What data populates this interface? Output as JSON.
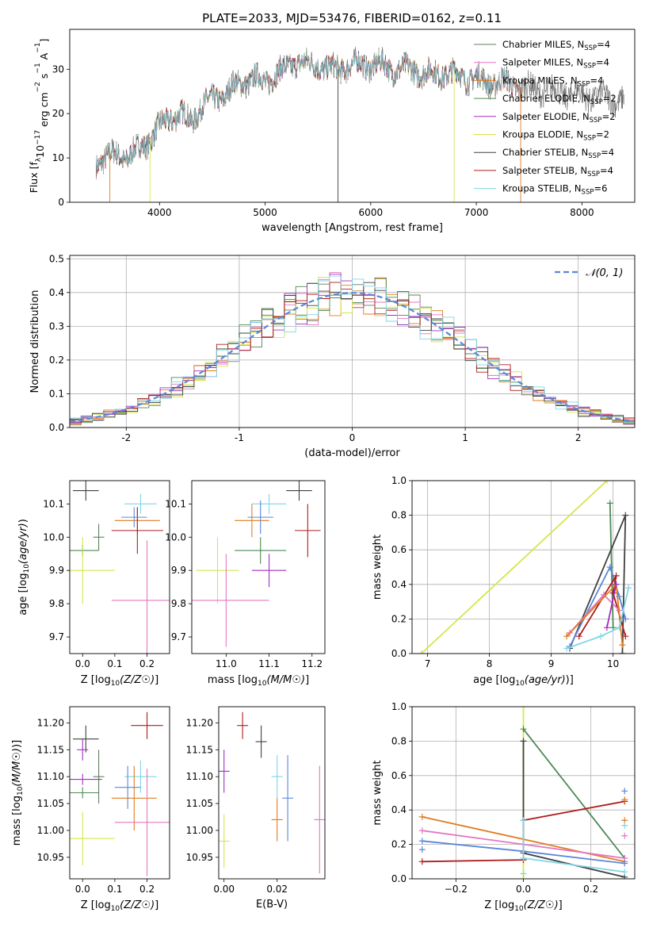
{
  "figure": {
    "title": "PLATE=2033, MJD=53476, FIBERID=0162, z=0.11"
  },
  "colors": {
    "Chabrier MILES": "#5f7f5f",
    "Salpeter MILES": "#e377c2",
    "Kroupa MILES": "#e07b20",
    "Chabrier ELODIE": "#4d8a55",
    "Salpeter ELODIE": "#a02fc0",
    "Kroupa ELODIE": "#d7e54d",
    "Chabrier STELIB": "#404040",
    "Salpeter STELIB": "#b01a1a",
    "Kroupa STELIB": "#7fd6e6",
    "blue": "#5b87d9",
    "normal_curve": "#5b87d9",
    "grid": "#b0b0b0"
  },
  "chart_data": [
    {
      "id": "spectrum",
      "type": "line",
      "title": "PLATE=2033, MJD=53476, FIBERID=0162, z=0.11",
      "xlabel": "wavelength [Angstrom, rest frame]",
      "ylabel": "Flux [f_λ 10^-17 erg cm^-2 s^-1 A^-1]",
      "xlim": [
        3150,
        8500
      ],
      "ylim": [
        0,
        39
      ],
      "xticks": [
        4000,
        5000,
        6000,
        7000,
        8000
      ],
      "yticks": [
        0,
        10,
        20,
        30
      ],
      "grid": false,
      "legend_position": "upper-right",
      "legend": [
        {
          "label": "Chabrier MILES, N_SSP=4",
          "text": "Chabrier MILES, N",
          "sub": "SSP",
          "tail": "=4",
          "model": "Chabrier MILES"
        },
        {
          "label": "Salpeter MILES, N_SSP=4",
          "text": "Salpeter MILES, N",
          "sub": "SSP",
          "tail": "=4",
          "model": "Salpeter MILES"
        },
        {
          "label": "Kroupa MILES, N_SSP=4",
          "text": "Kroupa MILES, N",
          "sub": "SSP",
          "tail": "=4",
          "model": "Kroupa MILES"
        },
        {
          "label": "Chabrier ELODIE, N_SSP=2",
          "text": "Chabrier ELODIE, N",
          "sub": "SSP",
          "tail": "=2",
          "model": "Chabrier ELODIE"
        },
        {
          "label": "Salpeter ELODIE, N_SSP=2",
          "text": "Salpeter ELODIE, N",
          "sub": "SSP",
          "tail": "=2",
          "model": "Salpeter ELODIE"
        },
        {
          "label": "Kroupa ELODIE, N_SSP=2",
          "text": "Kroupa ELODIE, N",
          "sub": "SSP",
          "tail": "=2",
          "model": "Kroupa ELODIE"
        },
        {
          "label": "Chabrier STELIB, N_SSP=4",
          "text": "Chabrier STELIB, N",
          "sub": "SSP",
          "tail": "=4",
          "model": "Chabrier STELIB"
        },
        {
          "label": "Salpeter STELIB, N_SSP=4",
          "text": "Salpeter STELIB, N",
          "sub": "SSP",
          "tail": "=4",
          "model": "Salpeter STELIB"
        },
        {
          "label": "Kroupa STELIB, N_SSP=6",
          "text": "Kroupa STELIB, N",
          "sub": "SSP",
          "tail": "=6",
          "model": "Kroupa STELIB"
        }
      ],
      "envelope": {
        "x": [
          3400,
          3500,
          3600,
          3700,
          3800,
          3900,
          4000,
          4100,
          4200,
          4300,
          4400,
          4500,
          4600,
          4700,
          4800,
          4900,
          5000,
          5100,
          5200,
          5300,
          5400,
          5500,
          5600,
          5700,
          5800,
          5900,
          6000,
          6100,
          6200,
          6300,
          6400,
          6500,
          6600,
          6700,
          6800,
          6900,
          7000,
          7100,
          7200,
          7300,
          7400
        ],
        "y": [
          9,
          10,
          11,
          10,
          12,
          14,
          17,
          19,
          20,
          18,
          22,
          23,
          24,
          26,
          27,
          28,
          27,
          29,
          30,
          32,
          31,
          31,
          30,
          30,
          31,
          31,
          31,
          31,
          30,
          30,
          30,
          29,
          29,
          29,
          29,
          28,
          28,
          27,
          27,
          27,
          26
        ]
      },
      "data_x_range": [
        3400,
        8400
      ],
      "model_x_range": [
        3400,
        7400
      ],
      "gaps": [
        {
          "x": 3530,
          "model": "Kroupa MILES"
        },
        {
          "x": 3910,
          "model": "Kroupa ELODIE"
        },
        {
          "x": 5690,
          "model": "Chabrier STELIB"
        },
        {
          "x": 6790,
          "model": "Kroupa ELODIE"
        },
        {
          "x": 7420,
          "model": "Kroupa MILES"
        }
      ]
    },
    {
      "id": "residuals",
      "type": "step-histogram",
      "xlabel": "(data-model)/error",
      "ylabel": "Normed distribution",
      "xlim": [
        -2.5,
        2.5
      ],
      "ylim": [
        0,
        0.51
      ],
      "xticks": [
        -2,
        -1,
        0,
        1,
        2
      ],
      "yticks": [
        0.0,
        0.1,
        0.2,
        0.3,
        0.4,
        0.5
      ],
      "grid": true,
      "legend_position": "upper-right",
      "legend": [
        {
          "label": "𝒩(0, 1)"
        }
      ],
      "bin_width": 0.1,
      "series_models": [
        "Chabrier MILES",
        "Salpeter MILES",
        "Kroupa MILES",
        "Chabrier ELODIE",
        "Salpeter ELODIE",
        "Kroupa ELODIE",
        "Chabrier STELIB",
        "Salpeter STELIB",
        "Kroupa STELIB"
      ],
      "normal": {
        "mu": 0,
        "sigma": 1
      }
    },
    {
      "id": "age-vs-Z",
      "type": "errorbar",
      "xlabel": "Z [log10(Z/Z☉)]",
      "ylabel": "age [log10(age/yr)]",
      "xlim": [
        -0.04,
        0.27
      ],
      "ylim": [
        9.65,
        10.17
      ],
      "xticks": [
        0.0,
        0.1,
        0.2
      ],
      "xtick_labels": [
        "0.0",
        "0.1",
        "0.2"
      ],
      "yticks": [
        9.7,
        9.8,
        9.9,
        10.0,
        10.1
      ],
      "yticks_labels": [
        "9.7",
        "9.8",
        "9.9",
        "10.0",
        "10.1"
      ],
      "grid": false,
      "points": [
        {
          "model": "Chabrier STELIB",
          "x": 0.01,
          "xerr": 0.04,
          "y": 10.14,
          "yerr": 0.03
        },
        {
          "model": "Kroupa STELIB",
          "x": 0.18,
          "xerr": 0.05,
          "y": 10.1,
          "yerr": 0.03
        },
        {
          "model": "Chabrier MILES",
          "x": 0.05,
          "xerr": 0.0,
          "y": 10.0,
          "yerr": 0.04
        },
        {
          "model": "Kroupa MILES",
          "x": 0.17,
          "xerr": 0.07,
          "y": 10.05,
          "yerr": 0.04
        },
        {
          "model": "Salpeter STELIB",
          "x": 0.17,
          "xerr": 0.08,
          "y": 10.02,
          "yerr": 0.07
        },
        {
          "model": "Chabrier ELODIE",
          "x": 0.0,
          "xerr": 0.05,
          "y": 9.96,
          "yerr": 0.0
        },
        {
          "model": "Kroupa ELODIE",
          "x": 0.0,
          "xerr": 0.1,
          "y": 9.9,
          "yerr": 0.1
        },
        {
          "model": "Salpeter MILES",
          "x": 0.2,
          "xerr": 0.11,
          "y": 9.81,
          "yerr": 0.18
        },
        {
          "model": "blue",
          "x": 0.16,
          "xerr": 0.04,
          "y": 10.06,
          "yerr": 0.03
        }
      ]
    },
    {
      "id": "age-vs-mass",
      "type": "errorbar",
      "xlabel": "mass [log10(M/M☉)]",
      "ylabel": "",
      "xlim": [
        10.92,
        11.23
      ],
      "ylim": [
        9.65,
        10.17
      ],
      "xticks": [
        11.0,
        11.1,
        11.2
      ],
      "xtick_labels": [
        "11.0",
        "11.1",
        "11.2"
      ],
      "yticks": [
        9.7,
        9.8,
        9.9,
        10.0,
        10.1
      ],
      "yticks_labels": [
        "9.7",
        "9.8",
        "9.9",
        "10.0",
        "10.1"
      ],
      "grid": false,
      "points": [
        {
          "model": "Chabrier STELIB",
          "x": 11.17,
          "xerr": 0.03,
          "y": 10.14,
          "yerr": 0.03
        },
        {
          "model": "Kroupa STELIB",
          "x": 11.1,
          "xerr": 0.04,
          "y": 10.1,
          "yerr": 0.03
        },
        {
          "model": "Kroupa MILES",
          "x": 11.06,
          "xerr": 0.04,
          "y": 10.05,
          "yerr": 0.05
        },
        {
          "model": "Salpeter STELIB",
          "x": 11.19,
          "xerr": 0.03,
          "y": 10.02,
          "yerr": 0.08
        },
        {
          "model": "Chabrier ELODIE",
          "x": 11.08,
          "xerr": 0.06,
          "y": 9.96,
          "yerr": 0.04
        },
        {
          "model": "Kroupa ELODIE",
          "x": 10.98,
          "xerr": 0.05,
          "y": 9.9,
          "yerr": 0.1
        },
        {
          "model": "Salpeter ELODIE",
          "x": 11.1,
          "xerr": 0.04,
          "y": 9.9,
          "yerr": 0.05
        },
        {
          "model": "Salpeter MILES",
          "x": 11.0,
          "xerr": 0.1,
          "y": 9.81,
          "yerr": 0.14
        },
        {
          "model": "blue",
          "x": 11.08,
          "xerr": 0.03,
          "y": 10.06,
          "yerr": 0.05
        }
      ]
    },
    {
      "id": "weight-vs-age",
      "type": "line",
      "xlabel": "age [log10(age/yr)]",
      "ylabel": "mass weight",
      "xlim": [
        6.75,
        10.35
      ],
      "ylim": [
        0,
        1.0
      ],
      "xticks": [
        7,
        8,
        9,
        10
      ],
      "yticks": [
        0.0,
        0.2,
        0.4,
        0.6,
        0.8,
        1.0
      ],
      "grid": true,
      "series": [
        {
          "model": "Kroupa ELODIE",
          "x": [
            6.9,
            9.9
          ],
          "y": [
            0.0,
            1.0
          ]
        },
        {
          "model": "Chabrier ELODIE",
          "x": [
            9.95,
            10.0
          ],
          "y": [
            0.87,
            0.15
          ]
        },
        {
          "model": "Chabrier STELIB",
          "x": [
            9.3,
            10.2,
            10.15
          ],
          "y": [
            0.03,
            0.8,
            0.0
          ]
        },
        {
          "model": "blue",
          "x": [
            9.3,
            9.95,
            10.1,
            10.2
          ],
          "y": [
            0.04,
            0.5,
            0.33,
            0.2
          ]
        },
        {
          "model": "Salpeter STELIB",
          "x": [
            9.45,
            10.05,
            10.0,
            10.2
          ],
          "y": [
            0.1,
            0.45,
            0.35,
            0.1
          ]
        },
        {
          "model": "Salpeter MILES",
          "x": [
            9.3,
            9.85,
            10.1
          ],
          "y": [
            0.12,
            0.34,
            0.25
          ]
        },
        {
          "model": "Kroupa MILES",
          "x": [
            9.25,
            10.05,
            10.15
          ],
          "y": [
            0.1,
            0.4,
            0.05
          ]
        },
        {
          "model": "Kroupa STELIB",
          "x": [
            9.25,
            9.8,
            10.1,
            10.25
          ],
          "y": [
            0.03,
            0.1,
            0.15,
            0.38
          ]
        },
        {
          "model": "Salpeter ELODIE",
          "x": [
            9.9,
            10.05
          ],
          "y": [
            0.15,
            0.4
          ]
        }
      ]
    },
    {
      "id": "mass-vs-Z",
      "type": "errorbar",
      "xlabel": "Z [log10(Z/Z☉)]",
      "ylabel": "mass [log10(M/M☉)]",
      "xlim": [
        -0.04,
        0.27
      ],
      "ylim": [
        10.91,
        11.23
      ],
      "xticks": [
        0.0,
        0.1,
        0.2
      ],
      "xtick_labels": [
        "0.0",
        "0.1",
        "0.2"
      ],
      "yticks": [
        10.95,
        11.0,
        11.05,
        11.1,
        11.15,
        11.2
      ],
      "yticks_labels": [
        "10.95",
        "11.00",
        "11.05",
        "11.10",
        "11.15",
        "11.20"
      ],
      "grid": false,
      "points": [
        {
          "model": "Salpeter STELIB",
          "x": 0.2,
          "xerr": 0.05,
          "y": 11.195,
          "yerr": 0.025
        },
        {
          "model": "Chabrier STELIB",
          "x": 0.01,
          "xerr": 0.04,
          "y": 11.17,
          "yerr": 0.025
        },
        {
          "model": "Salpeter ELODIE",
          "x": 0.0,
          "xerr": 0.0,
          "y": 11.15,
          "yerr": 0.02
        },
        {
          "model": "Kroupa STELIB",
          "x": 0.18,
          "xerr": 0.05,
          "y": 11.1,
          "yerr": 0.03
        },
        {
          "model": "Chabrier ELODIE",
          "x": 0.0,
          "xerr": 0.05,
          "y": 11.07,
          "yerr": 0.0
        },
        {
          "model": "Chabrier MILES",
          "x": 0.05,
          "xerr": 0.0,
          "y": 11.1,
          "yerr": 0.05
        },
        {
          "model": "Kroupa MILES",
          "x": 0.16,
          "xerr": 0.07,
          "y": 11.06,
          "yerr": 0.06
        },
        {
          "model": "Salpeter MILES",
          "x": 0.2,
          "xerr": 0.1,
          "y": 11.015,
          "yerr": 0.1
        },
        {
          "model": "Kroupa ELODIE",
          "x": 0.0,
          "xerr": 0.1,
          "y": 10.985,
          "yerr": 0.05
        },
        {
          "model": "blue",
          "x": 0.14,
          "xerr": 0.04,
          "y": 11.08,
          "yerr": 0.04
        },
        {
          "model": "Salpeter ELODIE",
          "x": 0.0,
          "xerr": 0.06,
          "y": 11.095,
          "yerr": 0.0
        }
      ]
    },
    {
      "id": "mass-vs-EBV",
      "type": "errorbar",
      "xlabel": "E(B-V)",
      "ylabel": "",
      "xlim": [
        -0.002,
        0.038
      ],
      "ylim": [
        10.91,
        11.23
      ],
      "xticks": [
        0.0,
        0.02
      ],
      "xtick_labels": [
        "0.00",
        "0.02"
      ],
      "yticks": [
        10.95,
        11.0,
        11.05,
        11.1,
        11.15,
        11.2
      ],
      "yticks_labels": [
        "10.95",
        "11.00",
        "11.05",
        "11.10",
        "11.15",
        "11.20"
      ],
      "grid": false,
      "points": [
        {
          "model": "Salpeter STELIB",
          "x": 0.007,
          "xerr": 0.0,
          "y": 11.195,
          "yerr": 0.025
        },
        {
          "model": "Chabrier STELIB",
          "x": 0.014,
          "xerr": 0.0,
          "y": 11.165,
          "yerr": 0.03
        },
        {
          "model": "Salpeter ELODIE",
          "x": 0.0,
          "xerr": 0.0,
          "y": 11.11,
          "yerr": 0.04
        },
        {
          "model": "Kroupa STELIB",
          "x": 0.02,
          "xerr": 0.0,
          "y": 11.1,
          "yerr": 0.04
        },
        {
          "model": "Kroupa MILES",
          "x": 0.02,
          "xerr": 0.0,
          "y": 11.02,
          "yerr": 0.04
        },
        {
          "model": "blue",
          "x": 0.024,
          "xerr": 0.0,
          "y": 11.06,
          "yerr": 0.08
        },
        {
          "model": "Salpeter MILES",
          "x": 0.036,
          "xerr": 0.0,
          "y": 11.02,
          "yerr": 0.1
        },
        {
          "model": "Kroupa ELODIE",
          "x": 0.0,
          "xerr": 0.0,
          "y": 10.98,
          "yerr": 0.05
        }
      ]
    },
    {
      "id": "weight-vs-Z",
      "type": "line",
      "xlabel": "Z [log10(Z/Z☉)]",
      "ylabel": "mass weight",
      "xlim": [
        -0.33,
        0.33
      ],
      "ylim": [
        0,
        1.0
      ],
      "xticks": [
        -0.2,
        0.0,
        0.2
      ],
      "xtick_labels": [
        "−0.2",
        "0.0",
        "0.2"
      ],
      "yticks": [
        0.0,
        0.2,
        0.4,
        0.6,
        0.8,
        1.0
      ],
      "grid": true,
      "series": [
        {
          "model": "Kroupa ELODIE",
          "x": [
            0.0,
            0.0
          ],
          "y": [
            0.0,
            1.0
          ]
        },
        {
          "model": "Chabrier ELODIE",
          "x": [
            0.0,
            0.3
          ],
          "y": [
            0.87,
            0.12
          ]
        },
        {
          "model": "Chabrier STELIB",
          "x": [
            0.0,
            0.0,
            0.3
          ],
          "y": [
            0.8,
            0.15,
            0.01
          ]
        },
        {
          "model": "Kroupa MILES",
          "x": [
            -0.3,
            0.3
          ],
          "y": [
            0.36,
            0.1
          ]
        },
        {
          "model": "Salpeter MILES",
          "x": [
            -0.3,
            0.3
          ],
          "y": [
            0.28,
            0.12
          ]
        },
        {
          "model": "blue",
          "x": [
            -0.3,
            0.0,
            0.3
          ],
          "y": [
            0.22,
            0.16,
            0.09
          ]
        },
        {
          "model": "Salpeter STELIB",
          "x": [
            -0.3,
            0.0,
            0.0,
            0.3
          ],
          "y": [
            0.1,
            0.11,
            0.34,
            0.45
          ]
        },
        {
          "model": "Kroupa STELIB",
          "x": [
            0.0,
            0.0,
            0.3
          ],
          "y": [
            0.34,
            0.12,
            0.04
          ]
        }
      ],
      "markers": [
        {
          "model": "blue",
          "x": 0.3,
          "y": 0.51
        },
        {
          "model": "Kroupa MILES",
          "x": 0.3,
          "y": 0.46
        },
        {
          "model": "Kroupa MILES",
          "x": 0.3,
          "y": 0.34
        },
        {
          "model": "Salpeter MILES",
          "x": 0.3,
          "y": 0.25
        },
        {
          "model": "Kroupa STELIB",
          "x": 0.3,
          "y": 0.31
        },
        {
          "model": "blue",
          "x": -0.3,
          "y": 0.17
        },
        {
          "model": "Kroupa STELIB",
          "x": 0.0,
          "y": 0.03
        }
      ]
    }
  ]
}
